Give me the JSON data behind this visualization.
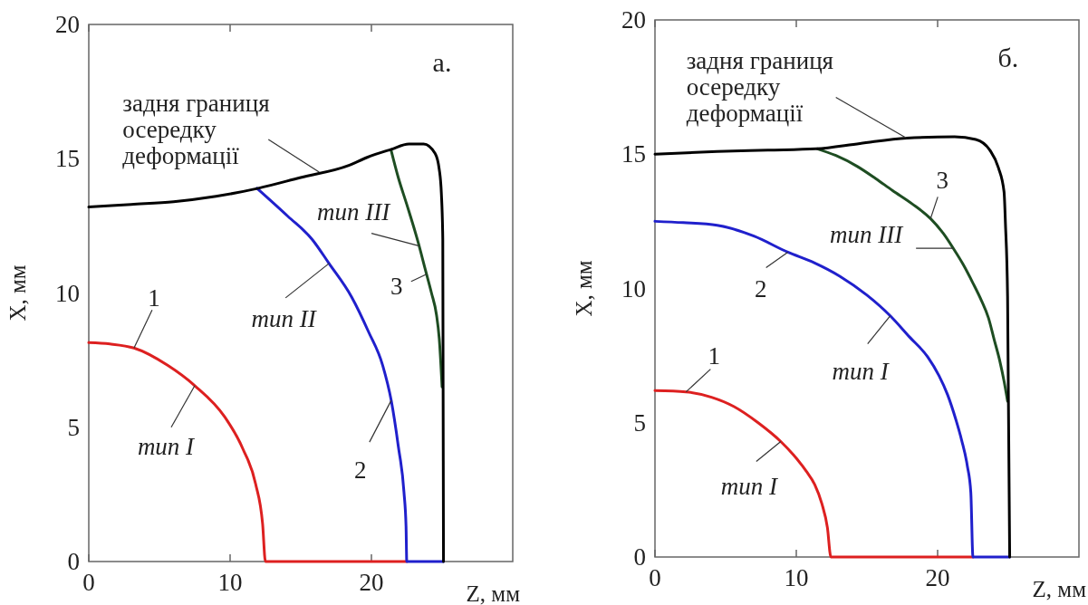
{
  "chart_data": [
    {
      "type": "line",
      "xlabel": "Z, мм",
      "ylabel": "X, мм",
      "xlim": [
        0,
        30
      ],
      "ylim": [
        0,
        20
      ],
      "xticks": [
        0,
        10,
        20
      ],
      "yticks": [
        0,
        5,
        10,
        15,
        20
      ],
      "series": [
        {
          "color": "#dd2020",
          "x": [
            0,
            1.5,
            3.2,
            5.6,
            7.5,
            9.6,
            10.9,
            11.8,
            12.3,
            12.5,
            22.5
          ],
          "values": [
            8.15,
            8.1,
            7.95,
            7.3,
            6.55,
            5.4,
            4.2,
            2.9,
            1.4,
            0,
            0
          ]
        },
        {
          "color": "#2020cc",
          "x": [
            11.9,
            14.1,
            15.8,
            17,
            18.6,
            19.8,
            20.8,
            21.4,
            21.9,
            22.3,
            22.45,
            22.5,
            25.1
          ],
          "values": [
            13.9,
            12.85,
            12,
            11.1,
            9.85,
            8.55,
            7.3,
            6,
            4.3,
            2.6,
            1.3,
            0,
            0
          ]
        },
        {
          "color": "#1e4d22",
          "x": [
            21.4,
            21.9,
            22.5,
            23.3,
            23.8,
            24.25,
            24.6,
            24.8,
            25
          ],
          "values": [
            15.3,
            14.3,
            13.3,
            11.9,
            10.9,
            10,
            9.2,
            8.3,
            6.5
          ]
        },
        {
          "color": "#000000",
          "x": [
            0,
            3,
            6,
            9,
            12,
            15,
            18.4,
            19.7,
            21.4,
            22.65,
            23.7,
            24.5,
            24.8,
            24.95,
            25.05,
            25.1
          ],
          "values": [
            13.2,
            13.3,
            13.4,
            13.6,
            13.9,
            14.3,
            14.75,
            15.05,
            15.35,
            15.55,
            15.55,
            15.2,
            14.6,
            13.7,
            12,
            0
          ]
        }
      ],
      "annotations": [
        "а.",
        {
          "text": "задня границя осередку деформації",
          "x": 16.3,
          "y": 14.5
        },
        {
          "text": "тип III",
          "x": 23.4,
          "y": 11.75
        },
        {
          "text": "3",
          "x": 23.9,
          "y": 10.7
        },
        {
          "text": "тип II",
          "x": 17,
          "y": 11.1
        },
        {
          "text": "1",
          "x": 3.2,
          "y": 7.95
        },
        {
          "text": "тип I",
          "x": 7.5,
          "y": 6.55
        },
        {
          "text": "2",
          "x": 21.4,
          "y": 6
        }
      ]
    },
    {
      "type": "line",
      "xlabel": "Z, мм",
      "ylabel": "X, мм",
      "xlim": [
        0,
        30
      ],
      "ylim": [
        0,
        20
      ],
      "xticks": [
        0,
        10,
        20
      ],
      "yticks": [
        0,
        5,
        10,
        15,
        20
      ],
      "series": [
        {
          "color": "#dd2020",
          "x": [
            0,
            2.2,
            4,
            5.6,
            7.3,
            8.9,
            9.8,
            10.7,
            11.3,
            11.8,
            12.2,
            12.45,
            22.5
          ],
          "values": [
            6.2,
            6.15,
            5.95,
            5.6,
            5,
            4.3,
            3.8,
            3.2,
            2.7,
            2,
            1.1,
            0,
            0
          ]
        },
        {
          "color": "#2020cc",
          "x": [
            0,
            2,
            4.4,
            7,
            9.4,
            11.3,
            13.1,
            15,
            16.65,
            18,
            19.3,
            20.1,
            20.7,
            21.3,
            21.7,
            22.1,
            22.35,
            22.5,
            25.1
          ],
          "values": [
            12.5,
            12.45,
            12.35,
            11.95,
            11.35,
            10.95,
            10.45,
            9.75,
            8.98,
            8.2,
            7.45,
            6.75,
            6.05,
            5.1,
            4.35,
            3.4,
            2.4,
            0,
            0
          ]
        },
        {
          "color": "#1e4d22",
          "x": [
            11.5,
            12.8,
            14.3,
            15.6,
            16.8,
            18.2,
            19.5,
            20.4,
            21.1,
            21.8,
            22.5,
            23.1,
            23.6,
            24,
            24.4,
            24.7,
            24.95
          ],
          "values": [
            15.2,
            14.95,
            14.55,
            14.1,
            13.65,
            13.15,
            12.6,
            12.05,
            11.5,
            10.9,
            10.2,
            9.55,
            8.9,
            8.1,
            7.3,
            6.55,
            5.8
          ]
        },
        {
          "color": "#000000",
          "x": [
            0,
            4.4,
            8,
            11.4,
            14.5,
            17.8,
            21.2,
            22.7,
            23.7,
            24.3,
            24.7,
            24.8,
            24.95,
            25.1
          ],
          "values": [
            15,
            15.1,
            15.15,
            15.2,
            15.4,
            15.6,
            15.65,
            15.55,
            15.15,
            14.5,
            13.6,
            12.4,
            9.7,
            0
          ]
        }
      ],
      "annotations": [
        "б.",
        {
          "text": "задня границя осередку деформації",
          "x": 17.8,
          "y": 15.6
        },
        {
          "text": "3",
          "x": 19.5,
          "y": 12.6
        },
        {
          "text": "тип III",
          "x": 21.1,
          "y": 11.5
        },
        {
          "text": "2",
          "x": 9.4,
          "y": 11.35
        },
        {
          "text": "тип I",
          "x": 16.65,
          "y": 8.98
        },
        {
          "text": "1",
          "x": 2.2,
          "y": 6.15
        },
        {
          "text": "тип I",
          "x": 8.9,
          "y": 4.3
        }
      ]
    }
  ]
}
